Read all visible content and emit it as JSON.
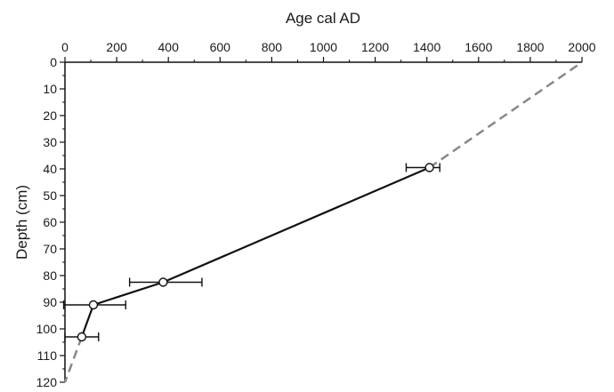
{
  "chart_data": {
    "type": "line",
    "title": "",
    "xlabel": "Age cal AD",
    "ylabel": "Depth (cm)",
    "x_axis_position": "top",
    "y_axis_inverted": true,
    "xlim": [
      0,
      2000
    ],
    "ylim": [
      0,
      120
    ],
    "x_ticks": [
      0,
      200,
      400,
      600,
      800,
      1000,
      1200,
      1400,
      1600,
      1800,
      2000
    ],
    "y_ticks": [
      0,
      10,
      20,
      30,
      40,
      50,
      60,
      70,
      80,
      90,
      100,
      110,
      120
    ],
    "grid": false,
    "legend": "none",
    "series": [
      {
        "style": "solid",
        "color": "#111111",
        "points": [
          {
            "age": 1410,
            "depth": 39.5,
            "age_err_low": 1320,
            "age_err_high": 1450
          },
          {
            "age": 380,
            "depth": 82.5,
            "age_err_low": 250,
            "age_err_high": 530
          },
          {
            "age": 110,
            "depth": 91,
            "age_err_low": -5,
            "age_err_high": 235
          },
          {
            "age": 65,
            "depth": 103,
            "age_err_low": 0,
            "age_err_high": 130
          }
        ]
      },
      {
        "style": "dashed",
        "color": "#888888",
        "points": [
          {
            "age": 1410,
            "depth": 39.5
          },
          {
            "age": 2000,
            "depth": 0
          }
        ]
      },
      {
        "style": "dashed",
        "color": "#888888",
        "points": [
          {
            "age": 65,
            "depth": 103
          },
          {
            "age": 0,
            "depth": 120
          }
        ]
      }
    ]
  }
}
